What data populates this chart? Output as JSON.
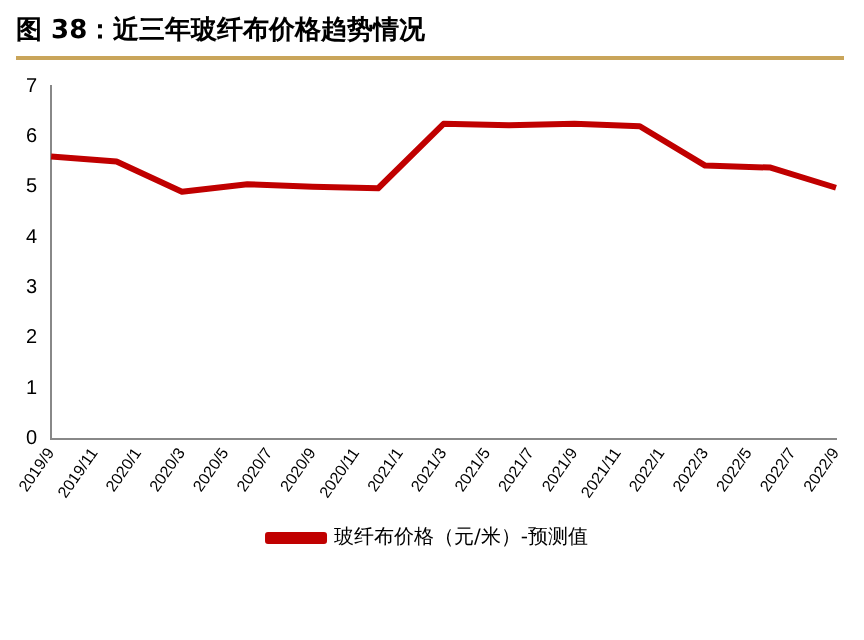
{
  "chart_data": {
    "type": "line",
    "title": "图 38：近三年玻纤布价格趋势情况",
    "categories": [
      "2019/9",
      null,
      "2019/11",
      null,
      "2020/1",
      null,
      "2020/3",
      null,
      "2020/5",
      null,
      "2020/7",
      null,
      "2020/9",
      null,
      "2020/11",
      null,
      "2021/1",
      null,
      "2021/3",
      null,
      "2021/5",
      null,
      "2021/7",
      null,
      "2021/9",
      null,
      "2021/11",
      null,
      "2022/1",
      null,
      "2022/3",
      null,
      "2022/5",
      null,
      "2022/7",
      null,
      "2022/9"
    ],
    "series": [
      {
        "name": "玻纤布价格（元/米）-预测值",
        "color": "#c00000",
        "values": [
          5.6,
          null,
          null,
          5.5,
          null,
          null,
          4.9,
          null,
          null,
          5.05,
          null,
          null,
          5.0,
          null,
          null,
          4.97,
          null,
          null,
          6.25,
          null,
          null,
          6.22,
          null,
          null,
          6.25,
          null,
          null,
          6.2,
          null,
          null,
          5.42,
          null,
          null,
          5.38,
          null,
          null,
          4.98
        ]
      }
    ],
    "ylim": [
      0,
      7
    ],
    "yticks": [
      0,
      1,
      2,
      3,
      4,
      5,
      6,
      7
    ],
    "grid": false,
    "legend": "bottom",
    "marker": "none",
    "line_style": "solid"
  }
}
